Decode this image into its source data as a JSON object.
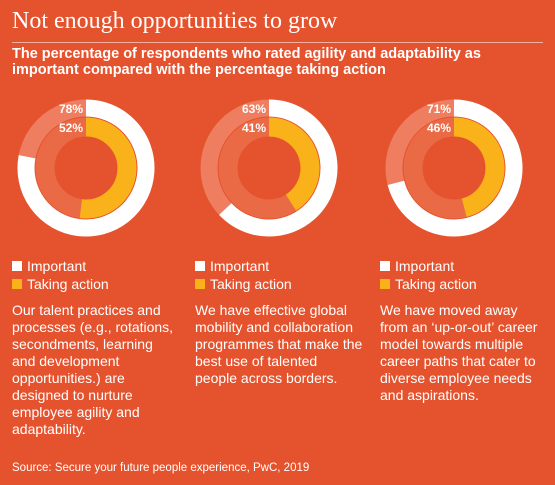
{
  "title": "Not enough opportunities to grow",
  "subtitle": "The percentage of respondents who rated agility and adaptability as important compared with the percentage taking action",
  "legend": {
    "important": "Important",
    "taking_action": "Taking action"
  },
  "colors": {
    "background": "#e5532e",
    "important": "#ffffff",
    "taking_action": "#f9b219",
    "track_outer": "#ee7e5f",
    "track_inner": "#ea6a45"
  },
  "chart_data": [
    {
      "type": "donut",
      "series": [
        {
          "name": "Important",
          "value": 78,
          "label": "78%"
        },
        {
          "name": "Taking action",
          "value": 52,
          "label": "52%"
        }
      ],
      "description": "Our talent practices and processes (e.g., rotations, secondments, learning and development opportunities.) are designed to nurture employee agility and adaptability."
    },
    {
      "type": "donut",
      "series": [
        {
          "name": "Important",
          "value": 63,
          "label": "63%"
        },
        {
          "name": "Taking action",
          "value": 41,
          "label": "41%"
        }
      ],
      "description": "We have effective global mobility and collaboration programmes that make the best use of talented people across borders."
    },
    {
      "type": "donut",
      "series": [
        {
          "name": "Important",
          "value": 71,
          "label": "71%"
        },
        {
          "name": "Taking action",
          "value": 46,
          "label": "46%"
        }
      ],
      "description": "We have moved away from an ‘up-or-out’ career model towards multiple career paths that cater to diverse employee needs and aspirations."
    }
  ],
  "source": "Source: Secure your future people experience, PwC, 2019"
}
